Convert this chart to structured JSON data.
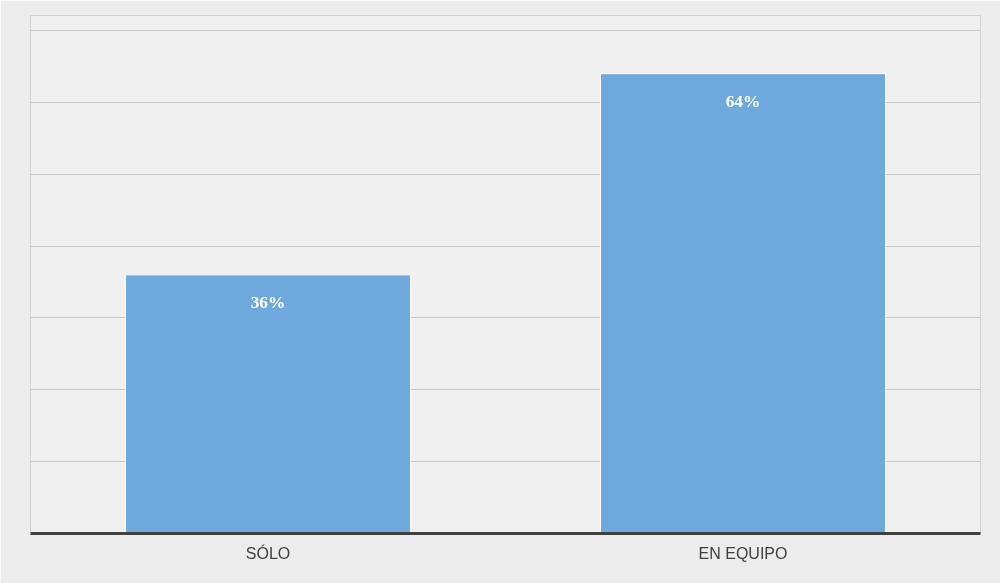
{
  "chart_data": {
    "type": "bar",
    "categories": [
      "SÓLO",
      "EN EQUIPO"
    ],
    "values": [
      36,
      64
    ],
    "value_labels": [
      "36%",
      "64%"
    ],
    "color": "#6fa8dc",
    "ylim": [
      0,
      70
    ],
    "yticks": [
      {
        "value": 0,
        "label": null
      },
      {
        "value": 10,
        "label": null
      },
      {
        "value": 20,
        "label": null
      },
      {
        "value": 30,
        "label": null
      },
      {
        "value": 40,
        "label": null
      },
      {
        "value": 50,
        "label": null
      },
      {
        "value": 60,
        "label": null
      },
      {
        "value": 70,
        "label": null
      }
    ],
    "grid": "y",
    "tick_labels": "x"
  }
}
